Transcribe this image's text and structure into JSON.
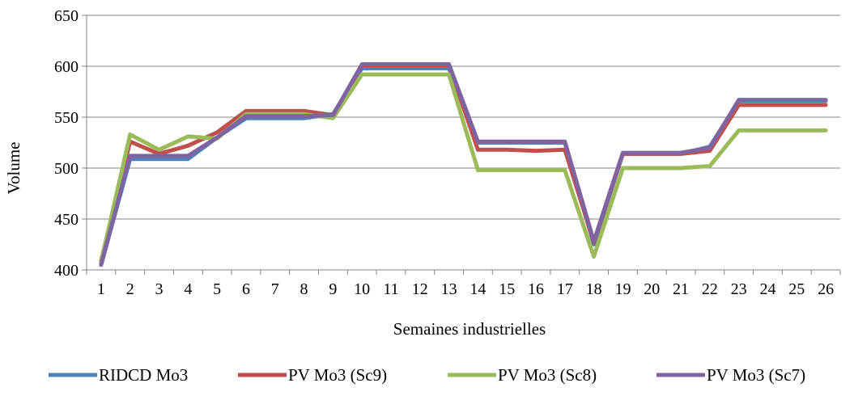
{
  "chart_data": {
    "type": "line",
    "title": "",
    "xlabel": "Semaines industrielles",
    "ylabel": "Volume",
    "ylim": [
      400,
      650
    ],
    "yticks": [
      400,
      450,
      500,
      550,
      600,
      650
    ],
    "grid": "horizontal",
    "legend_position": "bottom",
    "categories": [
      "1",
      "2",
      "3",
      "4",
      "5",
      "6",
      "7",
      "8",
      "9",
      "10",
      "11",
      "12",
      "13",
      "14",
      "15",
      "16",
      "17",
      "18",
      "19",
      "20",
      "21",
      "22",
      "23",
      "24",
      "25",
      "26"
    ],
    "series": [
      {
        "name": "RIDCD Mo3",
        "color": "#4F81BD",
        "values": [
          405,
          509,
          509,
          509,
          530,
          549,
          549,
          549,
          553,
          598,
          598,
          598,
          598,
          525,
          525,
          525,
          525,
          425,
          514,
          514,
          514,
          521,
          566,
          566,
          566,
          566
        ]
      },
      {
        "name": "PV Mo3 (Sc9)",
        "color": "#C0504D",
        "values": [
          409,
          526,
          514,
          522,
          535,
          556,
          556,
          556,
          552,
          601,
          601,
          601,
          601,
          518,
          518,
          517,
          518,
          427,
          514,
          514,
          514,
          517,
          562,
          562,
          562,
          562
        ]
      },
      {
        "name": "PV Mo3 (Sc8)",
        "color": "#9BBB59",
        "values": [
          408,
          533,
          518,
          531,
          529,
          553,
          553,
          553,
          549,
          592,
          592,
          592,
          592,
          498,
          498,
          498,
          498,
          413,
          500,
          500,
          500,
          502,
          537,
          537,
          537,
          537
        ]
      },
      {
        "name": "PV Mo3 (Sc7)",
        "color": "#8064A2",
        "values": [
          405,
          512,
          512,
          512,
          530,
          551,
          551,
          551,
          552,
          602,
          602,
          602,
          602,
          526,
          526,
          526,
          526,
          428,
          515,
          515,
          515,
          520,
          567,
          567,
          567,
          567
        ]
      }
    ]
  }
}
